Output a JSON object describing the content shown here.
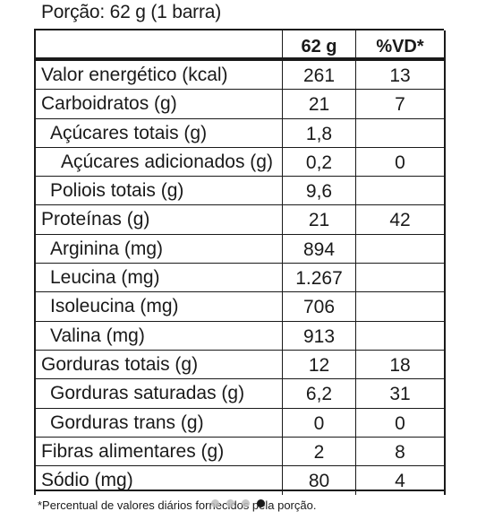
{
  "portion": "Porção: 62 g (1 barra)",
  "header": {
    "qty": "62 g",
    "vd": "%VD*"
  },
  "rows": [
    {
      "name": "Valor energético (kcal)",
      "qty": "261",
      "vd": "13"
    },
    {
      "name": "Carboidratos (g)",
      "qty": "21",
      "vd": "7"
    },
    {
      "name": "Açúcares totais (g)",
      "qty": "1,8",
      "vd": ""
    },
    {
      "name": "Açúcares adicionados (g)",
      "qty": "0,2",
      "vd": "0"
    },
    {
      "name": "Poliois totais (g)",
      "qty": "9,6",
      "vd": ""
    },
    {
      "name": "Proteínas (g)",
      "qty": "21",
      "vd": "42"
    },
    {
      "name": "Arginina (mg)",
      "qty": "894",
      "vd": ""
    },
    {
      "name": "Leucina (mg)",
      "qty": "1.267",
      "vd": ""
    },
    {
      "name": "Isoleucina (mg)",
      "qty": "706",
      "vd": ""
    },
    {
      "name": "Valina (mg)",
      "qty": "913",
      "vd": ""
    },
    {
      "name": "Gorduras totais (g)",
      "qty": "12",
      "vd": "18"
    },
    {
      "name": "Gorduras saturadas (g)",
      "qty": "6,2",
      "vd": "31"
    },
    {
      "name": "Gorduras trans (g)",
      "qty": "0",
      "vd": "0"
    },
    {
      "name": "Fibras alimentares (g)",
      "qty": "2",
      "vd": "8"
    },
    {
      "name": "Sódio (mg)",
      "qty": "80",
      "vd": "4"
    }
  ],
  "footnote": "*Percentual de valores diários fornecidos pela porção.",
  "carousel": {
    "count": 4,
    "active_index": 3
  }
}
